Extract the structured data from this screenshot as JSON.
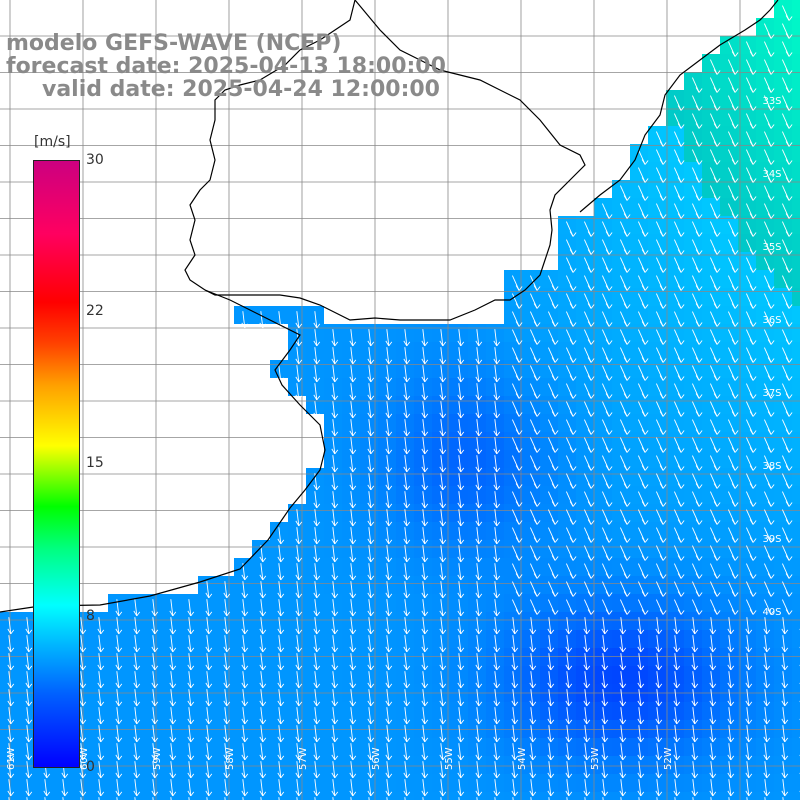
{
  "title": {
    "line1": "modelo GEFS-WAVE (NCEP)",
    "line2": "forecast date: 2025-04-13 18:00:00",
    "line3": "valid date: 2025-04-24 12:00:00"
  },
  "colorbar": {
    "unit": "[m/s]",
    "ticks": [
      "30",
      "22",
      "15",
      "8",
      "0"
    ],
    "min": 0,
    "max": 30
  },
  "latitude_labels": [
    "33S",
    "34S",
    "35S",
    "36S",
    "37S",
    "38S",
    "39S",
    "40S"
  ],
  "longitude_labels": [
    "61W",
    "60W",
    "59W",
    "58W",
    "57W",
    "56W",
    "55W",
    "54W",
    "53W",
    "52W"
  ],
  "colors": {
    "background": "#ffffff",
    "title": "#8a8a8a",
    "coast": "#000000",
    "grid": "#888888",
    "arrows": "#ffffff"
  }
}
